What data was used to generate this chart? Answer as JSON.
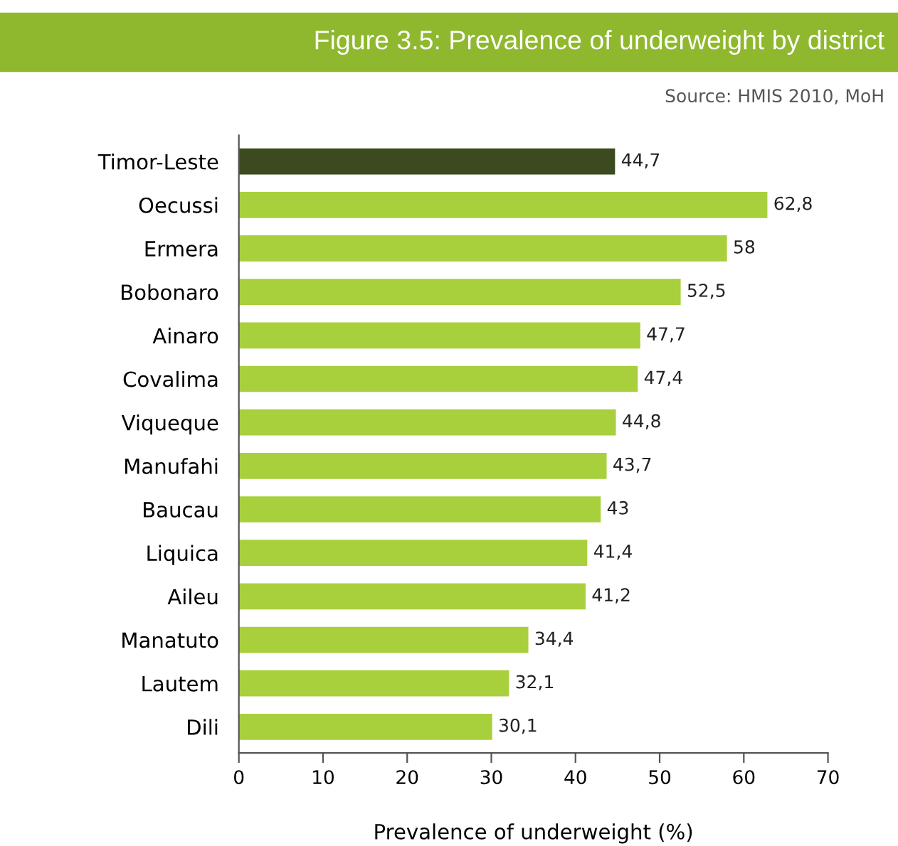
{
  "chart_data": {
    "type": "bar",
    "orientation": "horizontal",
    "title": "Figure 3.5: Prevalence of underweight by district",
    "annotations": [
      "Source: HMIS 2010, MoH"
    ],
    "xlabel": "Prevalence of underweight (%)",
    "categories": [
      "Timor-Leste",
      "Oecussi",
      "Ermera",
      "Bobonaro",
      "Ainaro",
      "Covalima",
      "Viqueque",
      "Manufahi",
      "Baucau",
      "Liquica",
      "Aileu",
      "Manatuto",
      "Lautem",
      "Dili"
    ],
    "values": [
      44.7,
      62.8,
      58,
      52.5,
      47.7,
      47.4,
      44.8,
      43.7,
      43,
      41.4,
      41.2,
      34.4,
      32.1,
      30.1
    ],
    "value_labels": [
      "44,7",
      "62,8",
      "58",
      "52,5",
      "47,7",
      "47,4",
      "44,8",
      "43,7",
      "43",
      "41,4",
      "41,2",
      "34,4",
      "32,1",
      "30,1"
    ],
    "colors": [
      "#3c4a1f",
      "#a8cf3c",
      "#a8cf3c",
      "#a8cf3c",
      "#a8cf3c",
      "#a8cf3c",
      "#a8cf3c",
      "#a8cf3c",
      "#a8cf3c",
      "#a8cf3c",
      "#a8cf3c",
      "#a8cf3c",
      "#a8cf3c",
      "#a8cf3c"
    ],
    "xlim": [
      0,
      70
    ],
    "xticks": [
      0,
      10,
      20,
      30,
      40,
      50,
      60,
      70
    ],
    "grid": false,
    "legend": false
  }
}
